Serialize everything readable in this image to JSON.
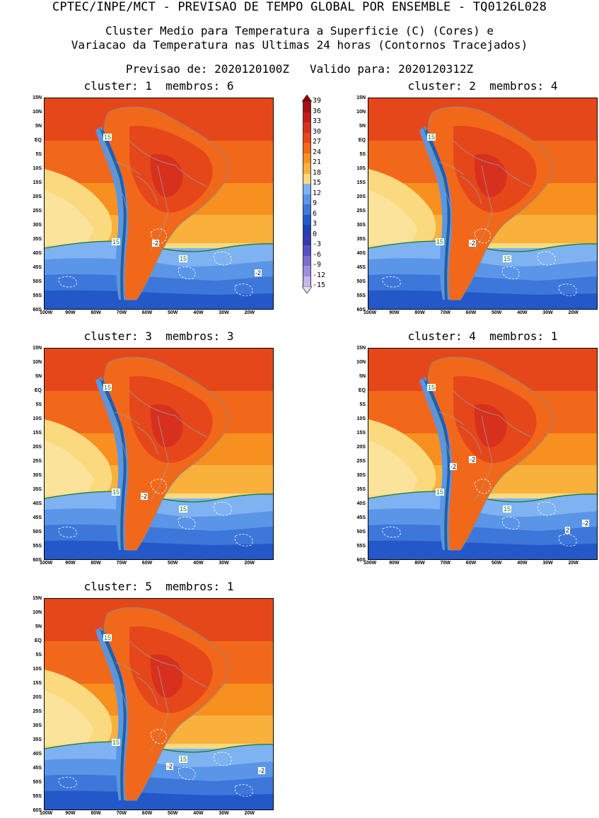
{
  "header": {
    "main_title": "CPTEC/INPE/MCT - PREVISAO DE TEMPO GLOBAL POR ENSEMBLE - TQ0126L028",
    "subtitle_line1": "Cluster Medio para Temperatura a Superficie (C) (Cores) e",
    "subtitle_line2": "Variacao da Temperatura nas Ultimas 24 horas (Contornos Tracejados)",
    "run_info": "Previsao de: 2020120100Z   Valido para: 2020120312Z"
  },
  "axes": {
    "lat_ticks": [
      "15N",
      "10N",
      "5N",
      "EQ",
      "5S",
      "10S",
      "15S",
      "20S",
      "25S",
      "30S",
      "35S",
      "40S",
      "45S",
      "50S",
      "55S",
      "60S"
    ],
    "lon_ticks": [
      "100W",
      "90W",
      "80W",
      "70W",
      "60W",
      "50W",
      "40W",
      "30W",
      "20W"
    ]
  },
  "legend": {
    "labels": [
      "39",
      "36",
      "33",
      "30",
      "27",
      "24",
      "21",
      "18",
      "15",
      "12",
      "9",
      "6",
      "3",
      "0",
      "-3",
      "-6",
      "-9",
      "-12",
      "-15"
    ],
    "colors": [
      "#8b0000",
      "#a60f14",
      "#c21b1b",
      "#d8301e",
      "#e6471a",
      "#f2681a",
      "#f7901f",
      "#f9b13c",
      "#fbd97f",
      "#7fb2f0",
      "#5a95e8",
      "#3d77d9",
      "#2458c9",
      "#1e3fb2",
      "#3a37b5",
      "#5b4fc3",
      "#7d6dd0",
      "#9f8fde",
      "#c3b6eb",
      "#e6ddf7"
    ]
  },
  "panels": [
    {
      "title": "cluster: 1  membros: 6",
      "labels15": [
        "15",
        "15",
        "15"
      ],
      "labelsm2": [
        "-2",
        "-2"
      ]
    },
    {
      "title": "cluster: 2  membros: 4",
      "labels15": [
        "15",
        "15",
        "15"
      ],
      "labelsm2": [
        "-2"
      ]
    },
    {
      "title": "cluster: 3  membros: 3",
      "labels15": [
        "15",
        "15",
        "15"
      ],
      "labelsm2": [
        "-2"
      ]
    },
    {
      "title": "cluster: 4  membros: 1",
      "labels15": [
        "15",
        "15",
        "15"
      ],
      "labelsm2": [
        "-2",
        "-2",
        "-2",
        "2"
      ]
    },
    {
      "title": "cluster: 5  membros: 1",
      "labels15": [
        "15",
        "15",
        "15"
      ],
      "labelsm2": [
        "-2",
        "-2"
      ]
    }
  ]
}
